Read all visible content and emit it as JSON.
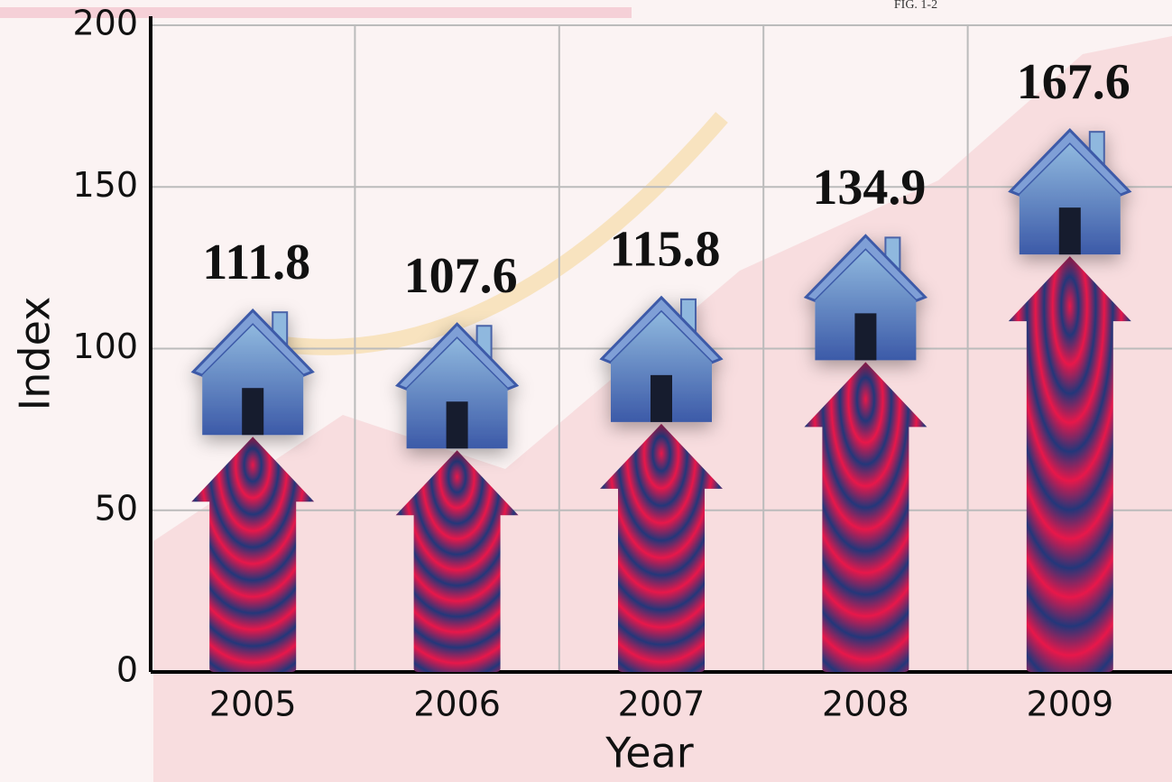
{
  "chart_data": {
    "type": "bar",
    "note": "FIG. 1-2",
    "x_label": "Year",
    "y_label": "Index",
    "categories": [
      "2005",
      "2006",
      "2007",
      "2008",
      "2009"
    ],
    "values": [
      111.8,
      107.6,
      115.8,
      134.9,
      167.6
    ],
    "ylim": [
      0,
      200
    ],
    "yticks": [
      0,
      50,
      100,
      150,
      200
    ],
    "grid": true
  }
}
